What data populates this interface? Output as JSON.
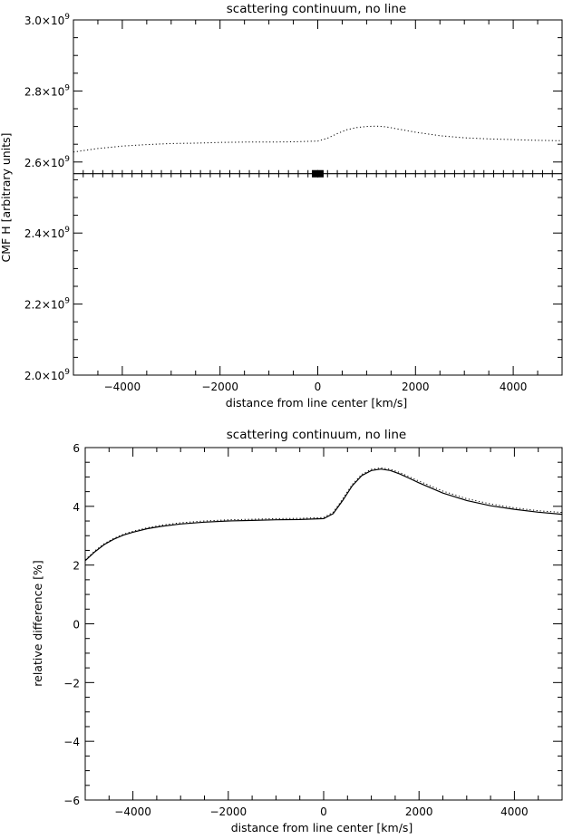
{
  "chart_data": [
    {
      "type": "line",
      "title": "scattering continuum, no line",
      "xlabel": "distance from line center [km/s]",
      "ylabel": "CMF H [arbitrary units]",
      "xlim": [
        -5000,
        5000
      ],
      "ylim": [
        2000000000.0,
        3000000000.0
      ],
      "x_ticks": [
        -4000,
        -2000,
        0,
        2000,
        4000
      ],
      "y_ticks": [
        {
          "value": 2000000000.0,
          "label": "2.0×10",
          "exp": "9"
        },
        {
          "value": 2200000000.0,
          "label": "2.2×10",
          "exp": "9"
        },
        {
          "value": 2400000000.0,
          "label": "2.4×10",
          "exp": "9"
        },
        {
          "value": 2600000000.0,
          "label": "2.6×10",
          "exp": "9"
        },
        {
          "value": 2800000000.0,
          "label": "2.8×10",
          "exp": "9"
        },
        {
          "value": 3000000000.0,
          "label": "3.0×10",
          "exp": "9"
        }
      ],
      "grid": false,
      "series": [
        {
          "style": "dotted",
          "x": [
            -5000,
            -4500,
            -4000,
            -3500,
            -3000,
            -2500,
            -2000,
            -1500,
            -1000,
            -500,
            0,
            200,
            400,
            600,
            800,
            1000,
            1200,
            1400,
            1600,
            2000,
            2500,
            3000,
            3500,
            4000,
            4500,
            5000
          ],
          "y": [
            2628000000.0,
            2638000000.0,
            2645000000.0,
            2649000000.0,
            2652000000.0,
            2653000000.0,
            2655000000.0,
            2656000000.0,
            2656000000.0,
            2657000000.0,
            2659000000.0,
            2667000000.0,
            2680000000.0,
            2691000000.0,
            2697000000.0,
            2700000000.0,
            2701000000.0,
            2699000000.0,
            2694000000.0,
            2684000000.0,
            2674000000.0,
            2668000000.0,
            2665000000.0,
            2663000000.0,
            2661000000.0,
            2660000000.0
          ]
        },
        {
          "style": "solid-crosses",
          "x": [
            -5000,
            5000
          ],
          "y": [
            2567000000.0,
            2567000000.0
          ],
          "marker_step": 200,
          "dense_marker_range": [
            -120,
            120
          ]
        }
      ]
    },
    {
      "type": "line",
      "title": "scattering continuum, no line",
      "xlabel": "distance from line center [km/s]",
      "ylabel": "relative difference [%]",
      "xlim": [
        -5000,
        5000
      ],
      "ylim": [
        -6,
        6
      ],
      "x_ticks": [
        -4000,
        -2000,
        0,
        2000,
        4000
      ],
      "y_ticks": [
        -6,
        -4,
        -2,
        0,
        2,
        4,
        6
      ],
      "grid": false,
      "series": [
        {
          "style": "solid",
          "x": [
            -5000,
            -4800,
            -4600,
            -4400,
            -4200,
            -4000,
            -3700,
            -3400,
            -3000,
            -2500,
            -2000,
            -1500,
            -1000,
            -500,
            0,
            200,
            400,
            600,
            800,
            1000,
            1200,
            1400,
            1600,
            1800,
            2000,
            2500,
            3000,
            3500,
            4000,
            4500,
            5000
          ],
          "y": [
            2.15,
            2.45,
            2.7,
            2.88,
            3.02,
            3.12,
            3.24,
            3.32,
            3.4,
            3.46,
            3.5,
            3.52,
            3.54,
            3.55,
            3.58,
            3.75,
            4.2,
            4.7,
            5.05,
            5.22,
            5.27,
            5.22,
            5.1,
            4.95,
            4.8,
            4.45,
            4.2,
            4.02,
            3.9,
            3.8,
            3.73
          ]
        },
        {
          "style": "dotted",
          "x": [
            -5000,
            -4800,
            -4600,
            -4400,
            -4200,
            -4000,
            -3700,
            -3400,
            -3000,
            -2500,
            -2000,
            -1500,
            -1000,
            -500,
            0,
            200,
            400,
            600,
            800,
            1000,
            1200,
            1400,
            1600,
            1800,
            2000,
            2500,
            3000,
            3500,
            4000,
            4500,
            5000
          ],
          "y": [
            2.18,
            2.48,
            2.73,
            2.91,
            3.05,
            3.15,
            3.27,
            3.36,
            3.44,
            3.5,
            3.54,
            3.56,
            3.58,
            3.59,
            3.62,
            3.8,
            4.25,
            4.75,
            5.09,
            5.26,
            5.31,
            5.26,
            5.15,
            5.0,
            4.86,
            4.52,
            4.26,
            4.08,
            3.95,
            3.85,
            3.79
          ]
        }
      ]
    }
  ]
}
